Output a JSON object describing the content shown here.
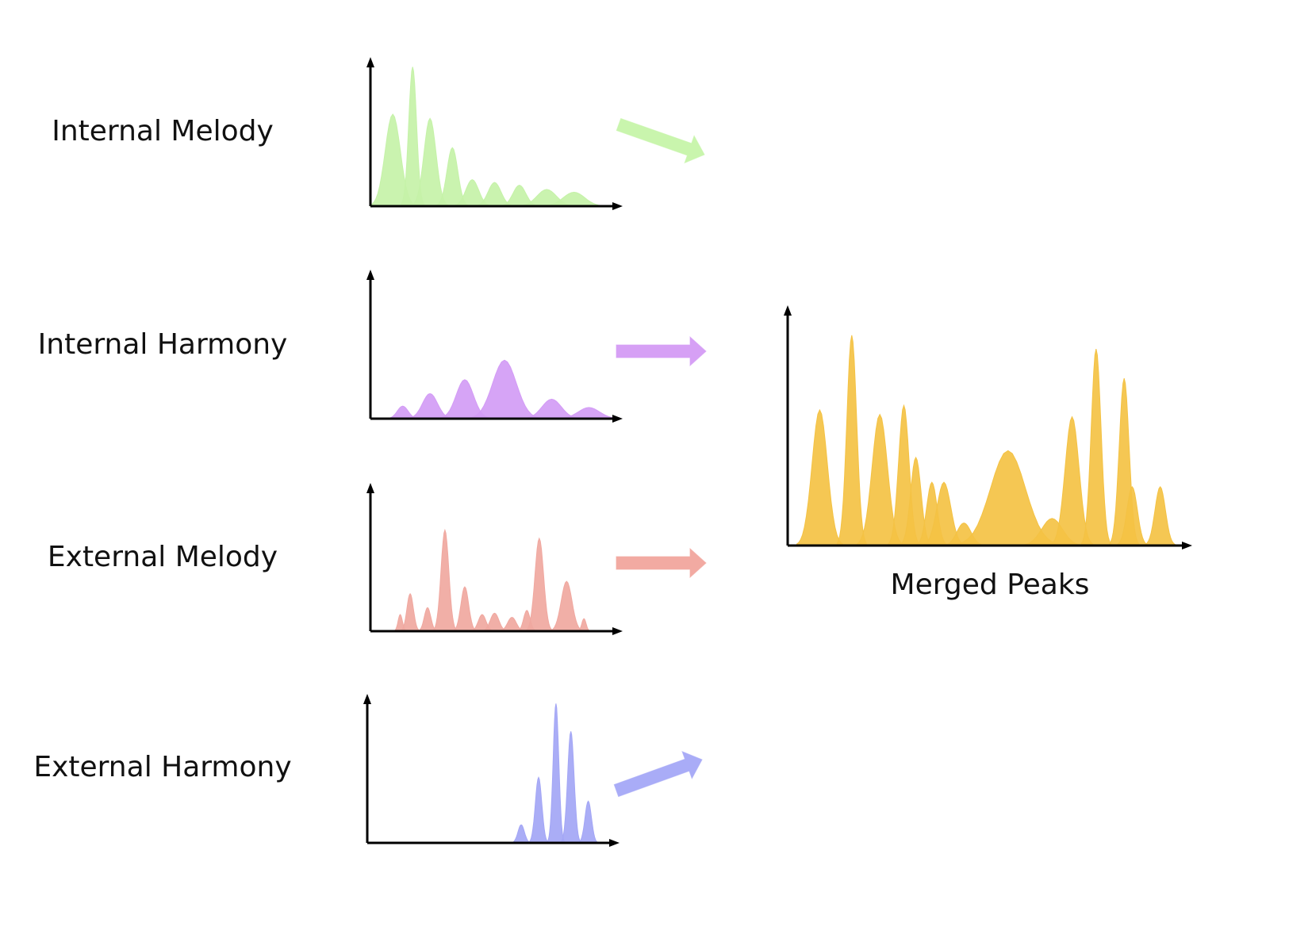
{
  "rows": [
    {
      "label": "Internal Melody",
      "color": "#c5f2a8",
      "arrow_color": "#c9f5ad",
      "arrow_direction": "down-right",
      "peaks": [
        [
          0.09,
          0.66,
          0.035
        ],
        [
          0.17,
          1.0,
          0.018
        ],
        [
          0.24,
          0.63,
          0.028
        ],
        [
          0.33,
          0.42,
          0.025
        ],
        [
          0.41,
          0.19,
          0.03
        ],
        [
          0.5,
          0.17,
          0.03
        ],
        [
          0.6,
          0.15,
          0.03
        ],
        [
          0.71,
          0.12,
          0.045
        ],
        [
          0.82,
          0.1,
          0.05
        ]
      ]
    },
    {
      "label": "Internal Harmony",
      "color": "#d39cf5",
      "arrow_color": "#d6a0f5",
      "arrow_direction": "right",
      "peaks": [
        [
          0.13,
          0.09,
          0.025
        ],
        [
          0.24,
          0.18,
          0.035
        ],
        [
          0.38,
          0.28,
          0.04
        ],
        [
          0.54,
          0.42,
          0.055
        ],
        [
          0.73,
          0.14,
          0.045
        ],
        [
          0.88,
          0.08,
          0.05
        ]
      ]
    },
    {
      "label": "External Melody",
      "color": "#f0a8a0",
      "arrow_color": "#f2aaa2",
      "arrow_direction": "right",
      "peaks": [
        [
          0.12,
          0.12,
          0.01
        ],
        [
          0.16,
          0.27,
          0.015
        ],
        [
          0.23,
          0.17,
          0.015
        ],
        [
          0.3,
          0.73,
          0.018
        ],
        [
          0.38,
          0.32,
          0.018
        ],
        [
          0.45,
          0.12,
          0.018
        ],
        [
          0.5,
          0.13,
          0.02
        ],
        [
          0.57,
          0.1,
          0.02
        ],
        [
          0.63,
          0.15,
          0.015
        ],
        [
          0.68,
          0.67,
          0.02
        ],
        [
          0.79,
          0.36,
          0.025
        ],
        [
          0.86,
          0.09,
          0.01
        ]
      ]
    },
    {
      "label": "External Harmony",
      "color": "#a3a6f5",
      "arrow_color": "#a9acf7",
      "arrow_direction": "up-right",
      "peaks": [
        [
          0.62,
          0.13,
          0.015
        ],
        [
          0.69,
          0.47,
          0.015
        ],
        [
          0.76,
          1.0,
          0.013
        ],
        [
          0.82,
          0.8,
          0.015
        ],
        [
          0.89,
          0.3,
          0.015
        ]
      ]
    }
  ],
  "merged": {
    "label": "Merged Peaks",
    "color": "#f4c244",
    "peaks": [
      [
        0.08,
        0.6,
        0.022
      ],
      [
        0.16,
        0.93,
        0.014
      ],
      [
        0.23,
        0.58,
        0.022
      ],
      [
        0.29,
        0.62,
        0.015
      ],
      [
        0.32,
        0.39,
        0.015
      ],
      [
        0.36,
        0.28,
        0.015
      ],
      [
        0.39,
        0.28,
        0.02
      ],
      [
        0.44,
        0.1,
        0.02
      ],
      [
        0.55,
        0.42,
        0.05
      ],
      [
        0.66,
        0.12,
        0.03
      ],
      [
        0.71,
        0.57,
        0.02
      ],
      [
        0.77,
        0.87,
        0.014
      ],
      [
        0.84,
        0.74,
        0.014
      ],
      [
        0.86,
        0.26,
        0.015
      ],
      [
        0.93,
        0.26,
        0.015
      ]
    ]
  }
}
